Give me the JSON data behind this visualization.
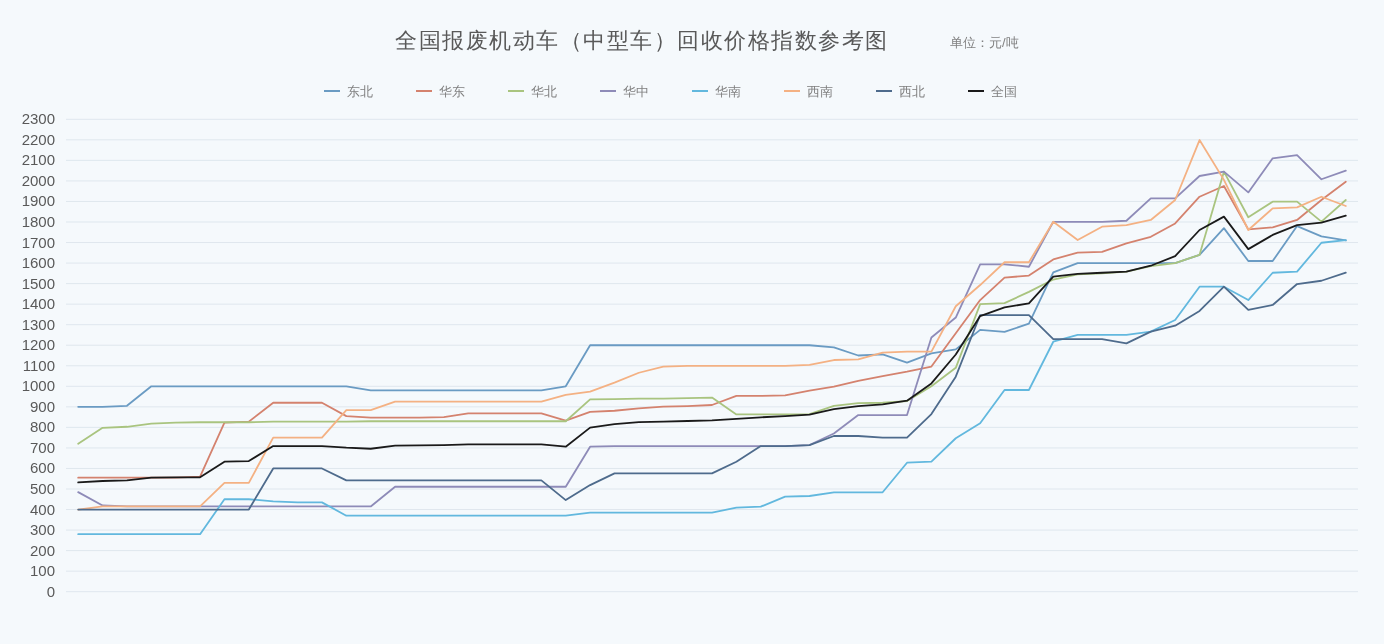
{
  "chart_data": {
    "type": "line",
    "title": "全国报废机动车（中型车）回收价格指数参考图",
    "subtitle": "单位：元/吨",
    "categories": [
      null,
      null,
      null,
      null,
      null,
      null,
      null,
      null,
      null,
      null,
      null,
      null,
      null,
      null,
      null,
      null,
      null,
      null,
      null,
      null,
      null,
      null,
      null,
      null,
      null,
      null,
      null,
      null,
      null,
      null,
      null,
      null,
      null,
      null,
      null,
      null,
      null,
      null,
      null,
      null,
      null,
      null,
      null,
      null,
      null,
      null,
      null,
      null,
      null,
      null,
      null,
      null,
      null
    ],
    "series": [
      {
        "name": "东北",
        "color": "#6a9bc3",
        "values": [
          900,
          900,
          905,
          1000,
          1000,
          1000,
          1000,
          1000,
          1000,
          1000,
          1000,
          1000,
          980,
          980,
          980,
          980,
          980,
          980,
          980,
          980,
          1000,
          1200,
          1200,
          1200,
          1200,
          1200,
          1200,
          1200,
          1200,
          1200,
          1200,
          1190,
          1150,
          1155,
          1115,
          1160,
          1180,
          1275,
          1265,
          1305,
          1555,
          1600,
          1600,
          1600,
          1600,
          1600,
          1640,
          1770,
          1610,
          1610,
          1780,
          1730,
          1710
        ]
      },
      {
        "name": "华东",
        "color": "#d4826e",
        "values": [
          555,
          555,
          555,
          555,
          555,
          560,
          823,
          828,
          920,
          920,
          920,
          855,
          848,
          848,
          848,
          850,
          868,
          868,
          868,
          868,
          833,
          876,
          881,
          893,
          901,
          904,
          909,
          953,
          953,
          956,
          979,
          998,
          1027,
          1050,
          1071,
          1096,
          1258,
          1420,
          1529,
          1539,
          1618,
          1651,
          1655,
          1696,
          1728,
          1793,
          1923,
          1975,
          1764,
          1774,
          1810,
          1907,
          1996
        ]
      },
      {
        "name": "华北",
        "color": "#a9c47f",
        "values": [
          720,
          798,
          803,
          818,
          823,
          825,
          825,
          825,
          828,
          828,
          828,
          828,
          830,
          830,
          830,
          830,
          830,
          830,
          830,
          830,
          830,
          936,
          938,
          940,
          940,
          942,
          945,
          863,
          863,
          863,
          865,
          905,
          918,
          920,
          928,
          1000,
          1090,
          1400,
          1405,
          1460,
          1520,
          1545,
          1550,
          1558,
          1585,
          1600,
          1640,
          2045,
          1823,
          1899,
          1899,
          1802,
          1907
        ]
      },
      {
        "name": "华中",
        "color": "#8e8bb8",
        "values": [
          485,
          420,
          415,
          415,
          415,
          415,
          415,
          415,
          415,
          415,
          415,
          415,
          415,
          511,
          511,
          511,
          511,
          511,
          511,
          511,
          511,
          706,
          709,
          709,
          709,
          709,
          709,
          709,
          709,
          709,
          714,
          770,
          860,
          860,
          860,
          1238,
          1335,
          1594,
          1594,
          1582,
          1801,
          1801,
          1801,
          1806,
          1915,
          1915,
          2024,
          2045,
          1944,
          2110,
          2126,
          2008,
          2050
        ]
      },
      {
        "name": "华南",
        "color": "#62b8de",
        "values": [
          280,
          280,
          280,
          280,
          280,
          280,
          450,
          450,
          440,
          435,
          435,
          370,
          370,
          370,
          370,
          370,
          370,
          370,
          370,
          370,
          370,
          385,
          385,
          385,
          385,
          385,
          385,
          409,
          414,
          463,
          466,
          484,
          484,
          484,
          628,
          633,
          747,
          820,
          982,
          982,
          1217,
          1250,
          1250,
          1250,
          1266,
          1323,
          1485,
          1485,
          1420,
          1553,
          1558,
          1699,
          1712
        ]
      },
      {
        "name": "西南",
        "color": "#f4b183",
        "values": [
          400,
          415,
          415,
          415,
          415,
          415,
          530,
          530,
          750,
          750,
          750,
          884,
          884,
          925,
          925,
          925,
          925,
          925,
          925,
          925,
          958,
          974,
          1018,
          1066,
          1096,
          1099,
          1099,
          1099,
          1099,
          1099,
          1104,
          1128,
          1131,
          1164,
          1169,
          1169,
          1390,
          1493,
          1604,
          1604,
          1801,
          1712,
          1777,
          1785,
          1810,
          1907,
          2199,
          2005,
          1761,
          1866,
          1871,
          1923,
          1878
        ]
      },
      {
        "name": "西北",
        "color": "#4e6b8c",
        "values": [
          400,
          400,
          400,
          400,
          400,
          400,
          400,
          400,
          600,
          600,
          600,
          542,
          542,
          542,
          542,
          542,
          542,
          542,
          542,
          542,
          446,
          519,
          576,
          576,
          576,
          576,
          576,
          633,
          709,
          709,
          714,
          758,
          758,
          750,
          750,
          865,
          1047,
          1347,
          1347,
          1347,
          1230,
          1230,
          1230,
          1209,
          1266,
          1295,
          1367,
          1485,
          1372,
          1396,
          1498,
          1514,
          1553
        ]
      },
      {
        "name": "全国",
        "color": "#1a1a1a",
        "values": [
          532,
          539,
          542,
          555,
          557,
          557,
          633,
          636,
          709,
          709,
          709,
          701,
          696,
          711,
          712,
          714,
          717,
          717,
          717,
          717,
          706,
          799,
          816,
          826,
          828,
          831,
          834,
          841,
          849,
          855,
          862,
          889,
          904,
          912,
          930,
          1014,
          1155,
          1342,
          1384,
          1404,
          1534,
          1547,
          1553,
          1558,
          1587,
          1634,
          1761,
          1826,
          1668,
          1737,
          1785,
          1797,
          1831
        ]
      }
    ],
    "ylim": [
      0,
      2300
    ],
    "yticks": [
      0,
      100,
      200,
      300,
      400,
      500,
      600,
      700,
      800,
      900,
      1000,
      1100,
      1200,
      1300,
      1400,
      1500,
      1600,
      1700,
      1800,
      1900,
      2000,
      2100,
      2200,
      2300
    ],
    "grid": "y",
    "legend": "top",
    "tick_labels": "y"
  }
}
